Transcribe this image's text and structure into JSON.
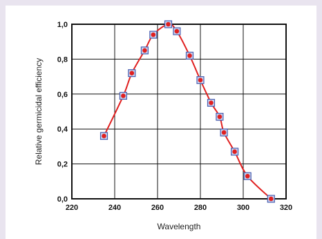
{
  "chart_data": {
    "type": "line",
    "xlabel": "Wavelength",
    "ylabel": "Relative germicidal efficiency",
    "xlim": [
      220,
      320
    ],
    "ylim": [
      0,
      1.0
    ],
    "x_ticks": [
      "220",
      "240",
      "260",
      "280",
      "300",
      "320"
    ],
    "y_ticks": [
      "0,0",
      "0,2",
      "0,4",
      "0,6",
      "0,8",
      "1,0"
    ],
    "grid": true,
    "series": [
      {
        "x": [
          235,
          244,
          248,
          254,
          258,
          265,
          269,
          275,
          280,
          285,
          289,
          291,
          296,
          302,
          313
        ],
        "y": [
          0.36,
          0.59,
          0.72,
          0.85,
          0.94,
          1.0,
          0.96,
          0.82,
          0.68,
          0.55,
          0.47,
          0.38,
          0.27,
          0.13,
          0.0
        ],
        "line_color": "#e02020",
        "marker_color": "#e02020",
        "marker_border": "#4a5fb0"
      }
    ]
  }
}
